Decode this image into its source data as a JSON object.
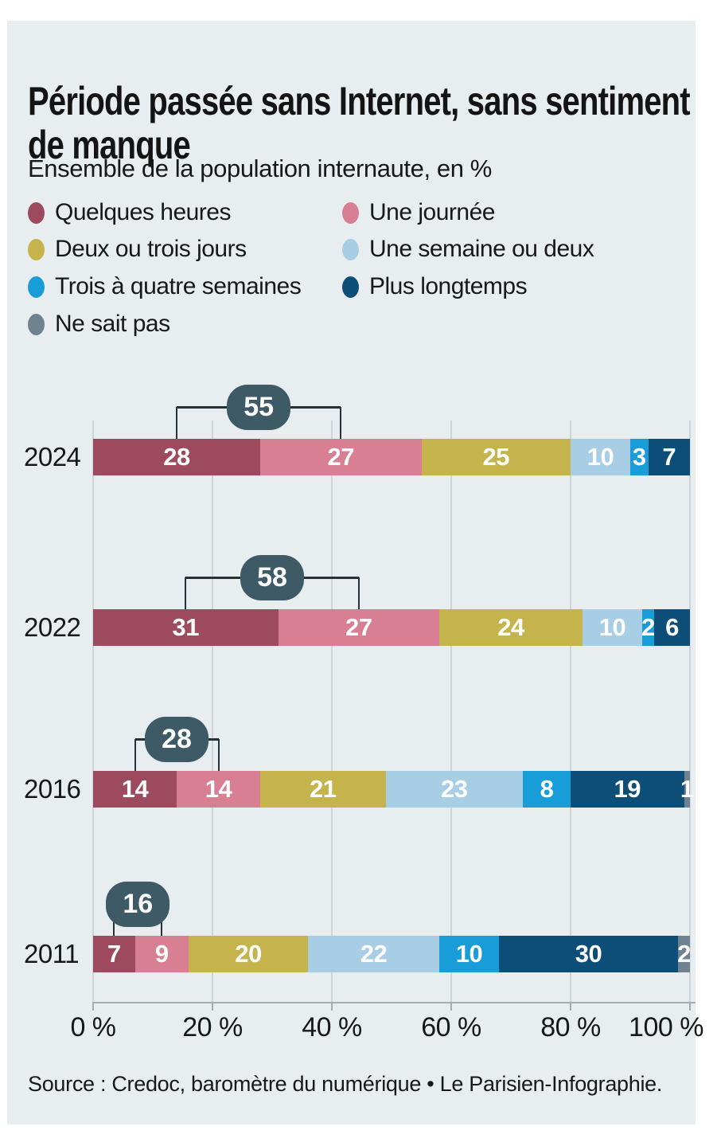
{
  "title": {
    "line1": "Période passée sans Internet, sans sentiment",
    "line2": "de manque"
  },
  "subtitle": "Ensemble de la population internaute, en %",
  "legend": [
    {
      "label": "Quelques heures",
      "color": "#9d4a5f"
    },
    {
      "label": "Une journée",
      "color": "#d87f94"
    },
    {
      "label": "Deux ou trois jours",
      "color": "#c5b34b"
    },
    {
      "label": "Une semaine ou deux",
      "color": "#a8cee6"
    },
    {
      "label": "Trois à quatre semaines",
      "color": "#189dd9"
    },
    {
      "label": "Plus longtemps",
      "color": "#0d4e79"
    },
    {
      "label": "Ne sait pas",
      "color": "#6e8290"
    }
  ],
  "chart_data": {
    "type": "bar",
    "stacked": true,
    "orientation": "horizontal",
    "categories": [
      "2024",
      "2022",
      "2016",
      "2011"
    ],
    "series": [
      {
        "name": "Quelques heures",
        "color": "#9d4a5f",
        "values": [
          28,
          31,
          14,
          7
        ]
      },
      {
        "name": "Une journée",
        "color": "#d87f94",
        "values": [
          27,
          27,
          14,
          9
        ]
      },
      {
        "name": "Deux ou trois jours",
        "color": "#c5b34b",
        "values": [
          25,
          24,
          21,
          20
        ]
      },
      {
        "name": "Une semaine ou deux",
        "color": "#a8cee6",
        "values": [
          10,
          10,
          23,
          22
        ]
      },
      {
        "name": "Trois à quatre semaines",
        "color": "#189dd9",
        "values": [
          3,
          2,
          8,
          10
        ]
      },
      {
        "name": "Plus longtemps",
        "color": "#0d4e79",
        "values": [
          7,
          6,
          19,
          30
        ]
      },
      {
        "name": "Ne sait pas",
        "color": "#6e8290",
        "values": [
          0,
          0,
          1,
          2
        ]
      }
    ],
    "callouts": [
      {
        "category": "2024",
        "value": 55
      },
      {
        "category": "2022",
        "value": 58
      },
      {
        "category": "2016",
        "value": 28
      },
      {
        "category": "2011",
        "value": 16
      }
    ],
    "x_ticks": [
      "0 %",
      "20 %",
      "40 %",
      "60 %",
      "80 %",
      "100 %"
    ],
    "xlim": [
      0,
      100
    ],
    "unit": "%",
    "legend_position": "top",
    "grid": true
  },
  "colors": {
    "panel_background": "#e8edef",
    "page_background": "#ffffff",
    "bubble": "#3d5a66",
    "bracket": "#26323a",
    "grid_line": "#ccd5d9",
    "axis_line": "#a2adb2",
    "text": "#17181a",
    "bar_label": "#ffffff"
  },
  "source": "Source : Credoc, baromètre du numérique • Le Parisien-Infographie."
}
